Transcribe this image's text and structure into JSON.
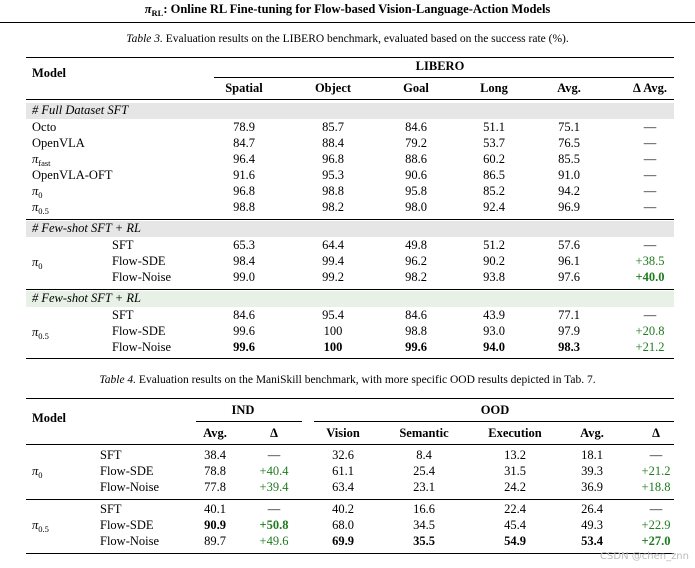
{
  "header": {
    "pi_sub": "RL",
    "title_rest": ": Online RL Fine-tuning for Flow-based Vision-Language-Action Models"
  },
  "table3": {
    "caption_label": "Table 3.",
    "caption_text": "Evaluation results on the LIBERO benchmark, evaluated based on the success rate (%).",
    "model_header": "Model",
    "group_header": "LIBERO",
    "columns": [
      "Spatial",
      "Object",
      "Goal",
      "Long",
      "Avg.",
      "Δ Avg."
    ],
    "section_full": "# Full Dataset SFT",
    "full_rows": [
      {
        "name": "Octo",
        "values": [
          "78.9",
          "85.7",
          "84.6",
          "51.1",
          "75.1",
          "—"
        ]
      },
      {
        "name": "OpenVLA",
        "values": [
          "84.7",
          "88.4",
          "79.2",
          "53.7",
          "76.5",
          "—"
        ]
      },
      {
        "name_pi": "π",
        "name_sub": "fast",
        "values": [
          "96.4",
          "96.8",
          "88.6",
          "60.2",
          "85.5",
          "—"
        ]
      },
      {
        "name": "OpenVLA-OFT",
        "values": [
          "91.6",
          "95.3",
          "90.6",
          "86.5",
          "91.0",
          "—"
        ]
      },
      {
        "name_pi": "π",
        "name_sub": "0",
        "values": [
          "96.8",
          "98.8",
          "95.8",
          "85.2",
          "94.2",
          "—"
        ]
      },
      {
        "name_pi": "π",
        "name_sub": "0.5",
        "values": [
          "98.8",
          "98.2",
          "98.0",
          "92.4",
          "96.9",
          "—"
        ]
      }
    ],
    "section_fewshot": "# Few-shot SFT + RL",
    "pi0_group": {
      "pi": "π",
      "sub": "0",
      "rows": [
        {
          "method": "SFT",
          "values": [
            "65.3",
            "64.4",
            "49.8",
            "51.2",
            "57.6",
            "—"
          ]
        },
        {
          "method": "Flow-SDE",
          "values": [
            "98.4",
            "99.4",
            "96.2",
            "90.2",
            "96.1",
            "+38.5"
          ]
        },
        {
          "method": "Flow-Noise",
          "values": [
            "99.0",
            "99.2",
            "98.2",
            "93.8",
            "97.6",
            "+40.0"
          ]
        }
      ]
    },
    "pi05_group": {
      "pi": "π",
      "sub": "0.5",
      "rows": [
        {
          "method": "SFT",
          "values": [
            "84.6",
            "95.4",
            "84.6",
            "43.9",
            "77.1",
            "—"
          ]
        },
        {
          "method": "Flow-SDE",
          "values": [
            "99.6",
            "100",
            "98.8",
            "93.0",
            "97.9",
            "+20.8"
          ]
        },
        {
          "method": "Flow-Noise",
          "values": [
            "99.6",
            "100",
            "99.6",
            "94.0",
            "98.3",
            "+21.2"
          ]
        }
      ]
    }
  },
  "table4": {
    "caption_label": "Table 4.",
    "caption_text": "Evaluation results on the ManiSkill benchmark, with more specific OOD results depicted in Tab. 7.",
    "model_header": "Model",
    "ind_header": "IND",
    "ood_header": "OOD",
    "columns": [
      "Avg.",
      "Δ",
      "Vision",
      "Semantic",
      "Execution",
      "Avg.",
      "Δ"
    ],
    "pi0_group": {
      "pi": "π",
      "sub": "0",
      "rows": [
        {
          "method": "SFT",
          "values": [
            "38.4",
            "—",
            "32.6",
            "8.4",
            "13.2",
            "18.1",
            "—"
          ]
        },
        {
          "method": "Flow-SDE",
          "values": [
            "78.8",
            "+40.4",
            "61.1",
            "25.4",
            "31.5",
            "39.3",
            "+21.2"
          ]
        },
        {
          "method": "Flow-Noise",
          "values": [
            "77.8",
            "+39.4",
            "63.4",
            "23.1",
            "24.2",
            "36.9",
            "+18.8"
          ]
        }
      ]
    },
    "pi05_group": {
      "pi": "π",
      "sub": "0.5",
      "rows": [
        {
          "method": "SFT",
          "values": [
            "40.1",
            "—",
            "40.2",
            "16.6",
            "22.4",
            "26.4",
            "—"
          ]
        },
        {
          "method": "Flow-SDE",
          "values": [
            "90.9",
            "+50.8",
            "68.0",
            "34.5",
            "45.4",
            "49.3",
            "+22.9"
          ]
        },
        {
          "method": "Flow-Noise",
          "values": [
            "89.7",
            "+49.6",
            "69.9",
            "35.5",
            "54.9",
            "53.4",
            "+27.0"
          ]
        }
      ]
    }
  },
  "watermark": "CSDN @chen_znn",
  "colors": {
    "gray_band": "#e6e6e6",
    "green_band": "#e7f1e5",
    "delta_green": "#1e7b1e"
  }
}
